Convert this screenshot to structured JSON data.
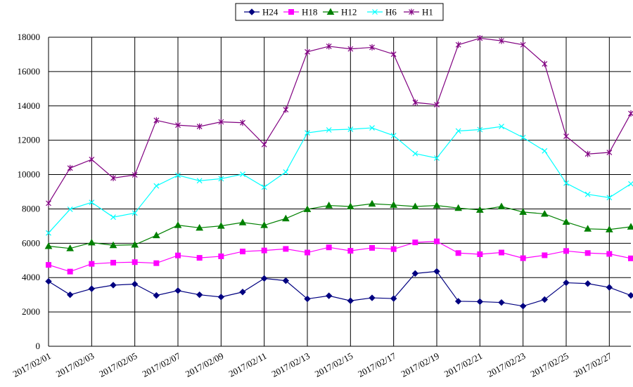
{
  "chart_data": {
    "type": "line",
    "title": "",
    "xlabel": "",
    "ylabel": "",
    "ylim": [
      0,
      18000
    ],
    "yticks": [
      0,
      2000,
      4000,
      6000,
      8000,
      10000,
      12000,
      14000,
      16000,
      18000
    ],
    "grid": true,
    "legend": "top-center",
    "x": [
      "2017/02/01",
      "2017/02/02",
      "2017/02/03",
      "2017/02/04",
      "2017/02/05",
      "2017/02/06",
      "2017/02/07",
      "2017/02/08",
      "2017/02/09",
      "2017/02/10",
      "2017/02/11",
      "2017/02/12",
      "2017/02/13",
      "2017/02/14",
      "2017/02/15",
      "2017/02/16",
      "2017/02/17",
      "2017/02/18",
      "2017/02/19",
      "2017/02/20",
      "2017/02/21",
      "2017/02/22",
      "2017/02/23",
      "2017/02/24",
      "2017/02/25",
      "2017/02/26",
      "2017/02/27",
      "2017/02/28"
    ],
    "x_tick_labels": [
      "2017/02/01",
      "2017/02/03",
      "2017/02/05",
      "2017/02/07",
      "2017/02/09",
      "2017/02/11",
      "2017/02/13",
      "2017/02/15",
      "2017/02/17",
      "2017/02/19",
      "2017/02/21",
      "2017/02/23",
      "2017/02/25",
      "2017/02/27"
    ],
    "series": [
      {
        "name": "H24",
        "color": "#000080",
        "marker": "diamond",
        "values": [
          3780,
          3000,
          3350,
          3560,
          3620,
          2960,
          3240,
          3000,
          2870,
          3160,
          3950,
          3820,
          2760,
          2940,
          2650,
          2820,
          2780,
          4240,
          4360,
          2620,
          2600,
          2550,
          2340,
          2720,
          3700,
          3650,
          3430,
          2960
        ]
      },
      {
        "name": "H18",
        "color": "#ff00ff",
        "marker": "square",
        "values": [
          4740,
          4350,
          4800,
          4870,
          4900,
          4840,
          5290,
          5150,
          5240,
          5520,
          5580,
          5670,
          5460,
          5760,
          5560,
          5730,
          5660,
          6050,
          6110,
          5430,
          5360,
          5460,
          5130,
          5300,
          5550,
          5430,
          5380,
          5120
        ]
      },
      {
        "name": "H12",
        "color": "#008000",
        "marker": "triangle",
        "values": [
          5830,
          5700,
          6040,
          5880,
          5910,
          6460,
          7050,
          6900,
          7010,
          7210,
          7050,
          7440,
          7980,
          8200,
          8140,
          8300,
          8230,
          8140,
          8200,
          8050,
          7940,
          8140,
          7820,
          7710,
          7240,
          6840,
          6800,
          6960
        ]
      },
      {
        "name": "H6",
        "color": "#00ffff",
        "marker": "x",
        "values": [
          6600,
          7980,
          8380,
          7520,
          7760,
          9340,
          9960,
          9640,
          9760,
          10020,
          9270,
          10150,
          12430,
          12600,
          12640,
          12720,
          12270,
          11220,
          10960,
          12540,
          12620,
          12800,
          12160,
          11380,
          9500,
          8850,
          8660,
          9460
        ]
      },
      {
        "name": "H1",
        "color": "#800080",
        "marker": "star",
        "values": [
          8330,
          10380,
          10880,
          9800,
          9980,
          13160,
          12880,
          12800,
          13070,
          13020,
          11750,
          13780,
          17150,
          17470,
          17320,
          17410,
          17010,
          14200,
          14070,
          17560,
          17940,
          17790,
          17560,
          16450,
          12230,
          11200,
          11290,
          13560
        ]
      }
    ]
  }
}
